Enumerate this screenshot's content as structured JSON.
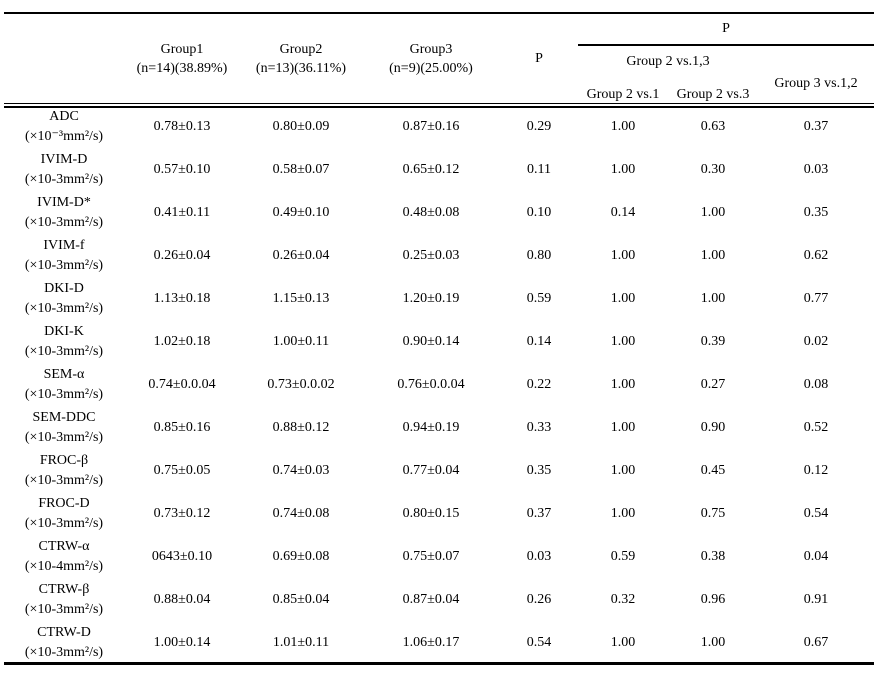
{
  "colors": {
    "background": "#ffffff",
    "text": "#000000",
    "rules": "#000000"
  },
  "table": {
    "header": {
      "corner": "",
      "groups": [
        {
          "name": "Group1",
          "n": "(n=14)(38.89%)"
        },
        {
          "name": "Group2",
          "n": "(n=13)(36.11%)"
        },
        {
          "name": "Group3",
          "n": "(n=9)(25.00%)"
        }
      ],
      "p": "P",
      "pairwise": {
        "p": "P",
        "group2_vs_13": "Group 2 vs.1,3",
        "group2_vs_1": "Group 2 vs.1",
        "group2_vs_3": "Group 2 vs.3",
        "group3_vs_12": "Group 3 vs.1,2"
      }
    },
    "rows": [
      {
        "name": "ADC",
        "unit": "(×10⁻³mm²/s)",
        "group1": "0.78±0.13",
        "group2": "0.80±0.09",
        "group3": "0.87±0.16",
        "p": "0.29",
        "p_2v1": "1.00",
        "p_2v3": "0.63",
        "p_3v12": "0.37"
      },
      {
        "name": "IVIM-D",
        "unit": "(×10-3mm²/s)",
        "group1": "0.57±0.10",
        "group2": "0.58±0.07",
        "group3": "0.65±0.12",
        "p": "0.11",
        "p_2v1": "1.00",
        "p_2v3": "0.30",
        "p_3v12": "0.03"
      },
      {
        "name": "IVIM-D*",
        "unit": "(×10-3mm²/s)",
        "group1": "0.41±0.11",
        "group2": "0.49±0.10",
        "group3": "0.48±0.08",
        "p": "0.10",
        "p_2v1": "0.14",
        "p_2v3": "1.00",
        "p_3v12": "0.35"
      },
      {
        "name": "IVIM-f",
        "unit": "(×10-3mm²/s)",
        "group1": "0.26±0.04",
        "group2": "0.26±0.04",
        "group3": "0.25±0.03",
        "p": "0.80",
        "p_2v1": "1.00",
        "p_2v3": "1.00",
        "p_3v12": "0.62"
      },
      {
        "name": "DKI-D",
        "unit": "(×10-3mm²/s)",
        "group1": "1.13±0.18",
        "group2": "1.15±0.13",
        "group3": "1.20±0.19",
        "p": "0.59",
        "p_2v1": "1.00",
        "p_2v3": "1.00",
        "p_3v12": "0.77"
      },
      {
        "name": "DKI-K",
        "unit": "(×10-3mm²/s)",
        "group1": "1.02±0.18",
        "group2": "1.00±0.11",
        "group3": "0.90±0.14",
        "p": "0.14",
        "p_2v1": "1.00",
        "p_2v3": "0.39",
        "p_3v12": "0.02"
      },
      {
        "name": "SEM-α",
        "unit": "(×10-3mm²/s)",
        "group1": "0.74±0.0.04",
        "group2": "0.73±0.0.02",
        "group3": "0.76±0.0.04",
        "p": "0.22",
        "p_2v1": "1.00",
        "p_2v3": "0.27",
        "p_3v12": "0.08"
      },
      {
        "name": "SEM-DDC",
        "unit": "(×10-3mm²/s)",
        "group1": "0.85±0.16",
        "group2": "0.88±0.12",
        "group3": "0.94±0.19",
        "p": "0.33",
        "p_2v1": "1.00",
        "p_2v3": "0.90",
        "p_3v12": "0.52"
      },
      {
        "name": "FROC-β",
        "unit": "(×10-3mm²/s)",
        "group1": "0.75±0.05",
        "group2": "0.74±0.03",
        "group3": "0.77±0.04",
        "p": "0.35",
        "p_2v1": "1.00",
        "p_2v3": "0.45",
        "p_3v12": "0.12"
      },
      {
        "name": "FROC-D",
        "unit": "(×10-3mm²/s)",
        "group1": "0.73±0.12",
        "group2": "0.74±0.08",
        "group3": "0.80±0.15",
        "p": "0.37",
        "p_2v1": "1.00",
        "p_2v3": "0.75",
        "p_3v12": "0.54"
      },
      {
        "name": "CTRW-α",
        "unit": "(×10-4mm²/s)",
        "group1": "0643±0.10",
        "group2": "0.69±0.08",
        "group3": "0.75±0.07",
        "p": "0.03",
        "p_2v1": "0.59",
        "p_2v3": "0.38",
        "p_3v12": "0.04"
      },
      {
        "name": "CTRW-β",
        "unit": "(×10-3mm²/s)",
        "group1": "0.88±0.04",
        "group2": "0.85±0.04",
        "group3": "0.87±0.04",
        "p": "0.26",
        "p_2v1": "0.32",
        "p_2v3": "0.96",
        "p_3v12": "0.91"
      },
      {
        "name": "CTRW-D",
        "unit": "(×10-3mm²/s)",
        "group1": "1.00±0.14",
        "group2": "1.01±0.11",
        "group3": "1.06±0.17",
        "p": "0.54",
        "p_2v1": "1.00",
        "p_2v3": "1.00",
        "p_3v12": "0.67"
      }
    ]
  }
}
